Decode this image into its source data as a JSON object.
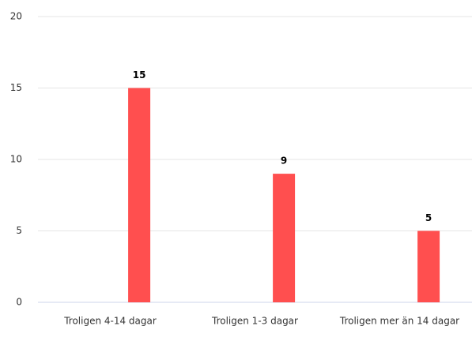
{
  "chart_data": {
    "type": "bar",
    "categories": [
      "Troligen 4-14 dagar",
      "Troligen 1-3 dagar",
      "Troligen mer än 14 dagar"
    ],
    "values": [
      15,
      9,
      5
    ],
    "color": "#ff4f4f",
    "ylim": [
      0,
      20
    ],
    "yticks": [
      0,
      5,
      10,
      15,
      20
    ],
    "grid": true
  }
}
